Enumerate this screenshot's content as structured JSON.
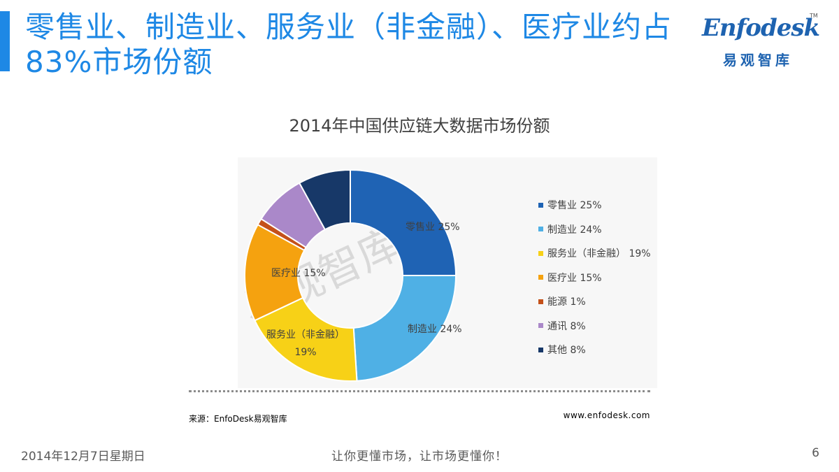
{
  "header": {
    "title": "零售业、制造业、服务业（非金融）、医疗业约占83%市场份额",
    "logo_text": "Enfodesk",
    "logo_cn": "易观智库",
    "logo_tm": "TM"
  },
  "chart_data": {
    "type": "pie",
    "donut": true,
    "title": "2014年中国供应链大数据市场份额",
    "watermark": "易观智库",
    "legend_position": "right",
    "series": [
      {
        "name": "零售业",
        "value": 25,
        "pct_label": "25%",
        "color": "#1f63b4"
      },
      {
        "name": "制造业",
        "value": 24,
        "pct_label": "24%",
        "color": "#4fb0e5"
      },
      {
        "name": "服务业（非金融）",
        "value": 19,
        "pct_label": "19%",
        "color": "#f7d117"
      },
      {
        "name": "医疗业",
        "value": 15,
        "pct_label": "15%",
        "color": "#f5a20f"
      },
      {
        "name": "能源",
        "value": 1,
        "pct_label": "1%",
        "color": "#c4511a"
      },
      {
        "name": "通讯",
        "value": 8,
        "pct_label": "8%",
        "color": "#aa88c9"
      },
      {
        "name": "其他",
        "value": 8,
        "pct_label": "8%",
        "color": "#173868"
      }
    ]
  },
  "footer": {
    "source": "来源：EnfoDesk易观智库",
    "website": "www.enfodesk.com",
    "date": "2014年12月7日星期日",
    "slogan": "让你更懂市场，让市场更懂你！",
    "page": "6"
  }
}
